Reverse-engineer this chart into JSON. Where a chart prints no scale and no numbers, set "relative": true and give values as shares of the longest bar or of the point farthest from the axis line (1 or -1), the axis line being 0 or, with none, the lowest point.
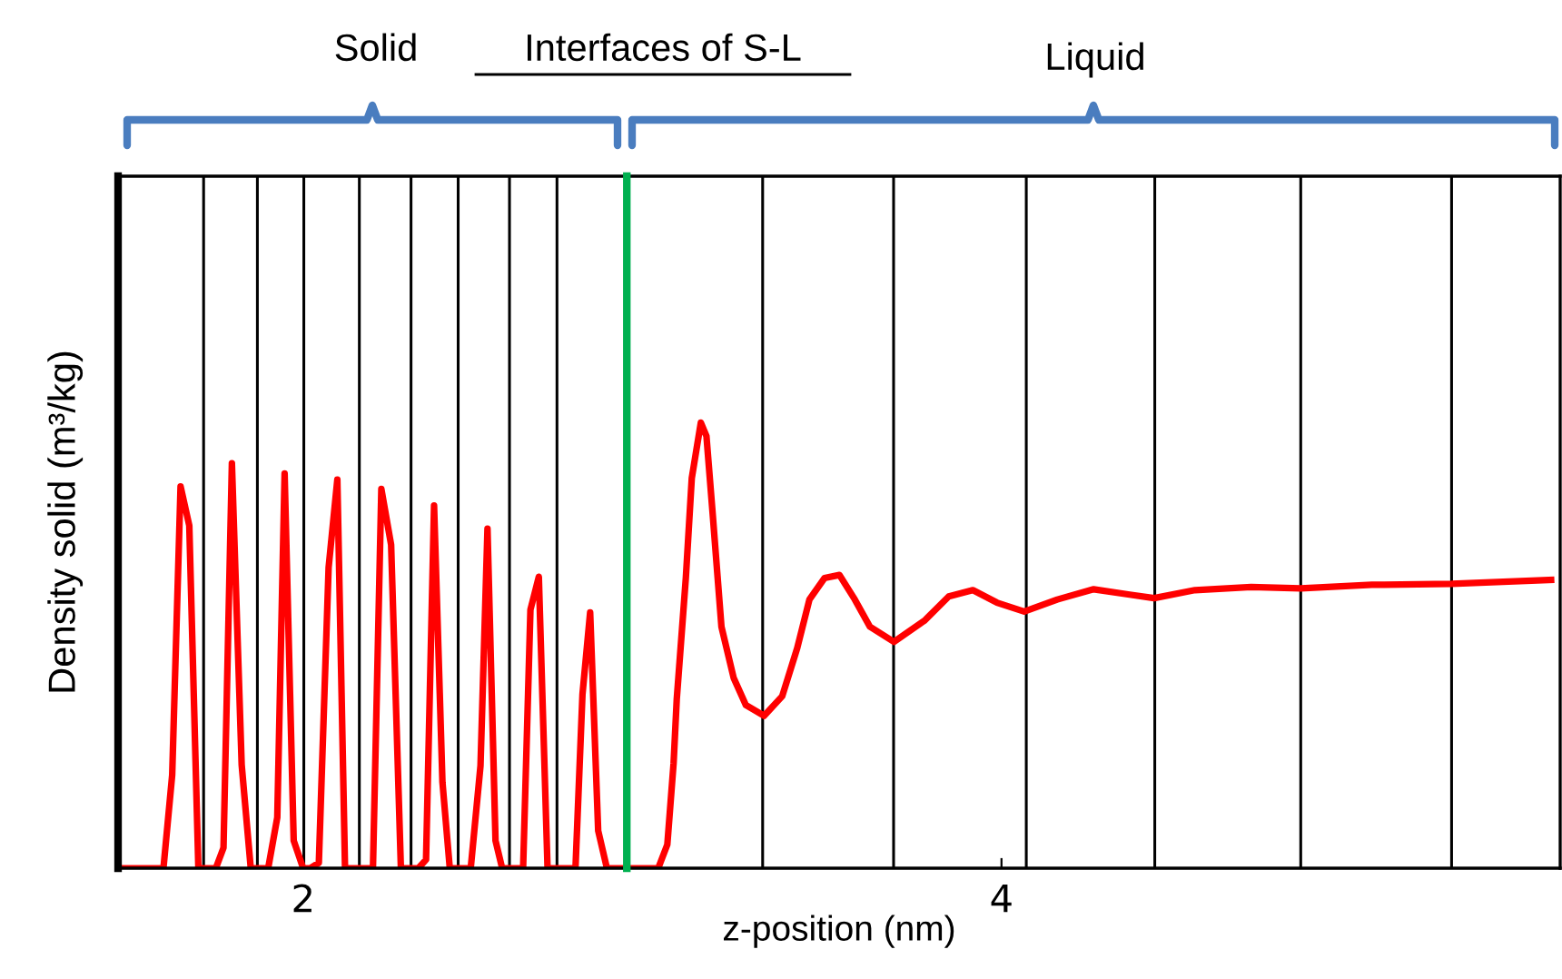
{
  "chart_data": {
    "type": "line",
    "xlabel": "z-position (nm)",
    "ylabel": "Density solid (m³/kg)",
    "relative": true,
    "xlim": [
      1.47,
      5.6
    ],
    "xticks": [
      2,
      4
    ],
    "grid": false,
    "marker": "none",
    "line_style": "solid",
    "annotations": [
      "Solid",
      "Interfaces of S-L",
      "Liquid"
    ],
    "series": [
      {
        "color": "#ff0000",
        "x": [
          1.48,
          1.6,
          1.625,
          1.649,
          1.674,
          1.7,
          1.75,
          1.772,
          1.796,
          1.824,
          1.85,
          1.9,
          1.926,
          1.947,
          1.973,
          2.0,
          2.02,
          2.045,
          2.073,
          2.098,
          2.12,
          2.2,
          2.224,
          2.252,
          2.28,
          2.33,
          2.352,
          2.375,
          2.399,
          2.42,
          2.48,
          2.508,
          2.528,
          2.551,
          2.57,
          2.63,
          2.651,
          2.675,
          2.7,
          2.78,
          2.8,
          2.822,
          2.845,
          2.87,
          3.017,
          3.043,
          3.061,
          3.07,
          3.096,
          3.113,
          3.139,
          3.155,
          3.173,
          3.198,
          3.233,
          3.268,
          3.32,
          3.372,
          3.415,
          3.45,
          3.493,
          3.536,
          3.58,
          3.623,
          3.692,
          3.78,
          3.849,
          3.918,
          3.987,
          4.065,
          4.16,
          4.264,
          4.367,
          4.437,
          4.554,
          4.715,
          4.857,
          5.061,
          5.289,
          5.574
        ],
        "values": [
          0,
          0,
          0.209,
          0.857,
          0.769,
          0,
          0,
          0.046,
          0.909,
          0.232,
          0,
          0,
          0.114,
          0.886,
          0.062,
          0,
          0,
          0.012,
          0.675,
          0.872,
          0,
          0,
          0.851,
          0.726,
          0,
          0,
          0.019,
          0.814,
          0.193,
          0,
          0,
          0.23,
          0.762,
          0.062,
          0,
          0,
          0.58,
          0.654,
          0,
          0,
          0.39,
          0.574,
          0.084,
          0,
          0,
          0.053,
          0.236,
          0.379,
          0.651,
          0.875,
          1,
          0.97,
          0.794,
          0.542,
          0.427,
          0.366,
          0.342,
          0.386,
          0.494,
          0.603,
          0.651,
          0.658,
          0.603,
          0.542,
          0.508,
          0.556,
          0.61,
          0.624,
          0.596,
          0.576,
          0.603,
          0.626,
          0.614,
          0.606,
          0.624,
          0.631,
          0.628,
          0.636,
          0.638,
          0.647
        ]
      }
    ],
    "ref_lines": [
      {
        "axis": "x",
        "value": 1.715,
        "color": "#000000"
      },
      {
        "axis": "x",
        "value": 1.869,
        "color": "#000000"
      },
      {
        "axis": "x",
        "value": 2.002,
        "color": "#000000"
      },
      {
        "axis": "x",
        "value": 2.161,
        "color": "#000000"
      },
      {
        "axis": "x",
        "value": 2.309,
        "color": "#000000"
      },
      {
        "axis": "x",
        "value": 2.444,
        "color": "#000000"
      },
      {
        "axis": "x",
        "value": 2.591,
        "color": "#000000"
      },
      {
        "axis": "x",
        "value": 2.727,
        "color": "#000000"
      },
      {
        "axis": "x",
        "value": 3.316,
        "color": "#000000"
      },
      {
        "axis": "x",
        "value": 3.691,
        "color": "#000000"
      },
      {
        "axis": "x",
        "value": 4.071,
        "color": "#000000"
      },
      {
        "axis": "x",
        "value": 4.439,
        "color": "#000000"
      },
      {
        "axis": "x",
        "value": 4.857,
        "color": "#000000"
      },
      {
        "axis": "x",
        "value": 5.289,
        "color": "#000000"
      },
      {
        "axis": "x",
        "value": 2.927,
        "color": "#00b050"
      }
    ]
  }
}
